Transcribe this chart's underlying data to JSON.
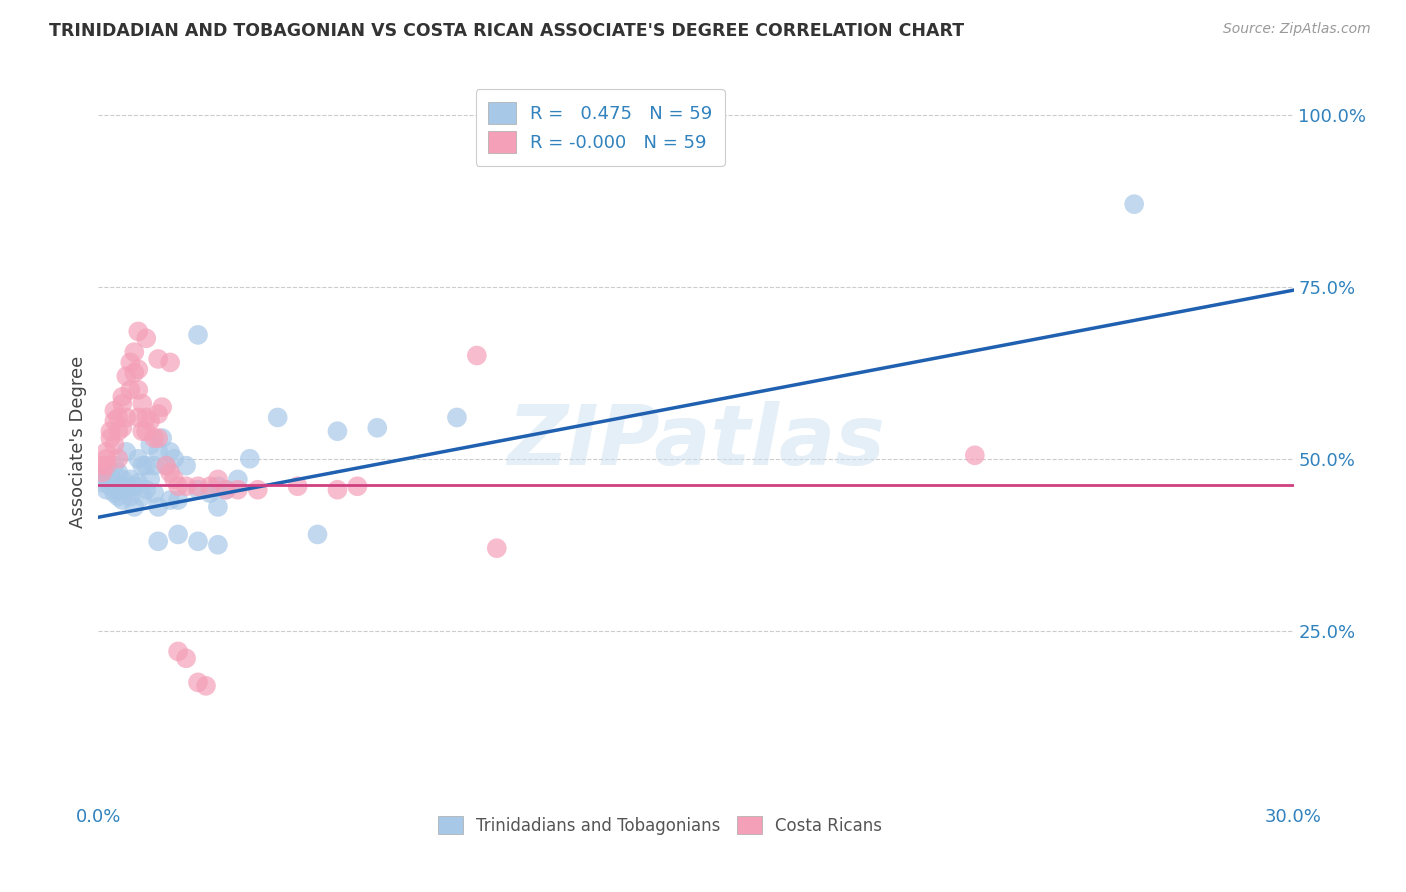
{
  "title": "TRINIDADIAN AND TOBAGONIAN VS COSTA RICAN ASSOCIATE'S DEGREE CORRELATION CHART",
  "source": "Source: ZipAtlas.com",
  "ylabel": "Associate's Degree",
  "legend_label_blue": "Trinidadians and Tobagonians",
  "legend_label_pink": "Costa Ricans",
  "watermark": "ZIPatlas",
  "blue_color": "#a8c8e8",
  "pink_color": "#f4a0b8",
  "line_blue": "#2060b0",
  "line_pink": "#d04080",
  "blue_scatter": [
    [
      0.001,
      0.475
    ],
    [
      0.001,
      0.465
    ],
    [
      0.002,
      0.48
    ],
    [
      0.002,
      0.47
    ],
    [
      0.002,
      0.455
    ],
    [
      0.003,
      0.475
    ],
    [
      0.003,
      0.46
    ],
    [
      0.004,
      0.49
    ],
    [
      0.004,
      0.45
    ],
    [
      0.004,
      0.465
    ],
    [
      0.005,
      0.48
    ],
    [
      0.005,
      0.445
    ],
    [
      0.005,
      0.455
    ],
    [
      0.006,
      0.47
    ],
    [
      0.006,
      0.44
    ],
    [
      0.006,
      0.46
    ],
    [
      0.007,
      0.51
    ],
    [
      0.007,
      0.455
    ],
    [
      0.008,
      0.47
    ],
    [
      0.008,
      0.445
    ],
    [
      0.009,
      0.46
    ],
    [
      0.009,
      0.43
    ],
    [
      0.01,
      0.5
    ],
    [
      0.01,
      0.465
    ],
    [
      0.011,
      0.49
    ],
    [
      0.011,
      0.445
    ],
    [
      0.012,
      0.49
    ],
    [
      0.012,
      0.455
    ],
    [
      0.013,
      0.52
    ],
    [
      0.013,
      0.47
    ],
    [
      0.014,
      0.49
    ],
    [
      0.014,
      0.45
    ],
    [
      0.015,
      0.51
    ],
    [
      0.015,
      0.43
    ],
    [
      0.016,
      0.53
    ],
    [
      0.017,
      0.49
    ],
    [
      0.018,
      0.51
    ],
    [
      0.018,
      0.44
    ],
    [
      0.019,
      0.5
    ],
    [
      0.02,
      0.44
    ],
    [
      0.022,
      0.49
    ],
    [
      0.025,
      0.455
    ],
    [
      0.028,
      0.45
    ],
    [
      0.03,
      0.46
    ],
    [
      0.03,
      0.43
    ],
    [
      0.032,
      0.455
    ],
    [
      0.035,
      0.47
    ],
    [
      0.038,
      0.5
    ],
    [
      0.045,
      0.56
    ],
    [
      0.06,
      0.54
    ],
    [
      0.07,
      0.545
    ],
    [
      0.09,
      0.56
    ],
    [
      0.015,
      0.38
    ],
    [
      0.02,
      0.39
    ],
    [
      0.025,
      0.38
    ],
    [
      0.03,
      0.375
    ],
    [
      0.055,
      0.39
    ],
    [
      0.26,
      0.87
    ],
    [
      0.025,
      0.68
    ]
  ],
  "pink_scatter": [
    [
      0.001,
      0.49
    ],
    [
      0.001,
      0.48
    ],
    [
      0.002,
      0.5
    ],
    [
      0.002,
      0.51
    ],
    [
      0.002,
      0.49
    ],
    [
      0.003,
      0.54
    ],
    [
      0.003,
      0.53
    ],
    [
      0.004,
      0.555
    ],
    [
      0.004,
      0.57
    ],
    [
      0.004,
      0.52
    ],
    [
      0.005,
      0.56
    ],
    [
      0.005,
      0.54
    ],
    [
      0.005,
      0.5
    ],
    [
      0.006,
      0.58
    ],
    [
      0.006,
      0.545
    ],
    [
      0.006,
      0.59
    ],
    [
      0.007,
      0.62
    ],
    [
      0.007,
      0.56
    ],
    [
      0.008,
      0.64
    ],
    [
      0.008,
      0.6
    ],
    [
      0.009,
      0.625
    ],
    [
      0.009,
      0.655
    ],
    [
      0.01,
      0.6
    ],
    [
      0.01,
      0.56
    ],
    [
      0.01,
      0.63
    ],
    [
      0.011,
      0.58
    ],
    [
      0.011,
      0.54
    ],
    [
      0.012,
      0.56
    ],
    [
      0.012,
      0.54
    ],
    [
      0.013,
      0.555
    ],
    [
      0.014,
      0.53
    ],
    [
      0.015,
      0.565
    ],
    [
      0.015,
      0.53
    ],
    [
      0.016,
      0.575
    ],
    [
      0.017,
      0.49
    ],
    [
      0.018,
      0.48
    ],
    [
      0.019,
      0.47
    ],
    [
      0.02,
      0.46
    ],
    [
      0.022,
      0.46
    ],
    [
      0.025,
      0.46
    ],
    [
      0.028,
      0.46
    ],
    [
      0.03,
      0.47
    ],
    [
      0.032,
      0.455
    ],
    [
      0.035,
      0.455
    ],
    [
      0.04,
      0.455
    ],
    [
      0.05,
      0.46
    ],
    [
      0.06,
      0.455
    ],
    [
      0.065,
      0.46
    ],
    [
      0.01,
      0.685
    ],
    [
      0.012,
      0.675
    ],
    [
      0.015,
      0.645
    ],
    [
      0.018,
      0.64
    ],
    [
      0.02,
      0.22
    ],
    [
      0.022,
      0.21
    ],
    [
      0.025,
      0.175
    ],
    [
      0.027,
      0.17
    ],
    [
      0.22,
      0.505
    ],
    [
      0.1,
      0.37
    ],
    [
      0.095,
      0.65
    ]
  ],
  "blue_line_x": [
    0.0,
    0.3
  ],
  "blue_line_y": [
    0.415,
    0.745
  ],
  "pink_line_x": [
    0.0,
    0.3
  ],
  "pink_line_y": [
    0.462,
    0.462
  ],
  "xlim": [
    0.0,
    0.3
  ],
  "ylim": [
    0.0,
    1.05
  ],
  "ytick_vals": [
    0.25,
    0.5,
    0.75,
    1.0
  ],
  "ytick_labels": [
    "25.0%",
    "50.0%",
    "75.0%",
    "100.0%"
  ],
  "xtick_vals": [
    0.0,
    0.3
  ],
  "xtick_labels": [
    "0.0%",
    "30.0%"
  ],
  "background_color": "#ffffff",
  "grid_color": "#cccccc"
}
